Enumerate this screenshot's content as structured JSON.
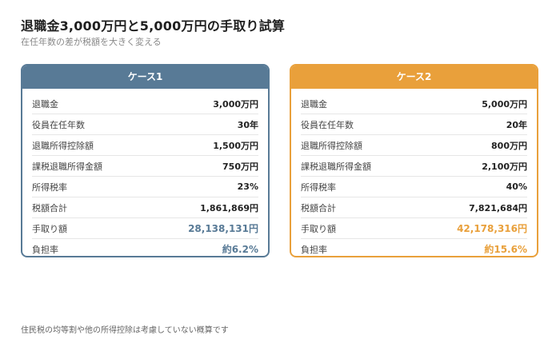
{
  "title": "退職金3,000万円と5,000万円の手取り試算",
  "subtitle": "在任年数の差が税額を大きく変える",
  "colors": {
    "case1": "#587a96",
    "case2": "#e9a03b"
  },
  "cases": [
    {
      "header": "ケース1",
      "rows": [
        {
          "label": "退職金",
          "value": "3,000万円"
        },
        {
          "label": "役員在任年数",
          "value": "30年"
        },
        {
          "label": "退職所得控除額",
          "value": "1,500万円"
        },
        {
          "label": "課税退職所得金額",
          "value": "750万円"
        },
        {
          "label": "所得税率",
          "value": "23%"
        },
        {
          "label": "税額合計",
          "value": "1,861,869円"
        },
        {
          "label": "手取り額",
          "value": "28,138,131円"
        },
        {
          "label": "負担率",
          "value": "約6.2%"
        }
      ]
    },
    {
      "header": "ケース2",
      "rows": [
        {
          "label": "退職金",
          "value": "5,000万円"
        },
        {
          "label": "役員在任年数",
          "value": "20年"
        },
        {
          "label": "退職所得控除額",
          "value": "800万円"
        },
        {
          "label": "課税退職所得金額",
          "value": "2,100万円"
        },
        {
          "label": "所得税率",
          "value": "40%"
        },
        {
          "label": "税額合計",
          "value": "7,821,684円"
        },
        {
          "label": "手取り額",
          "value": "42,178,316円"
        },
        {
          "label": "負担率",
          "value": "約15.6%"
        }
      ]
    }
  ],
  "footnote": "住民税の均等割や他の所得控除は考慮していない概算です"
}
